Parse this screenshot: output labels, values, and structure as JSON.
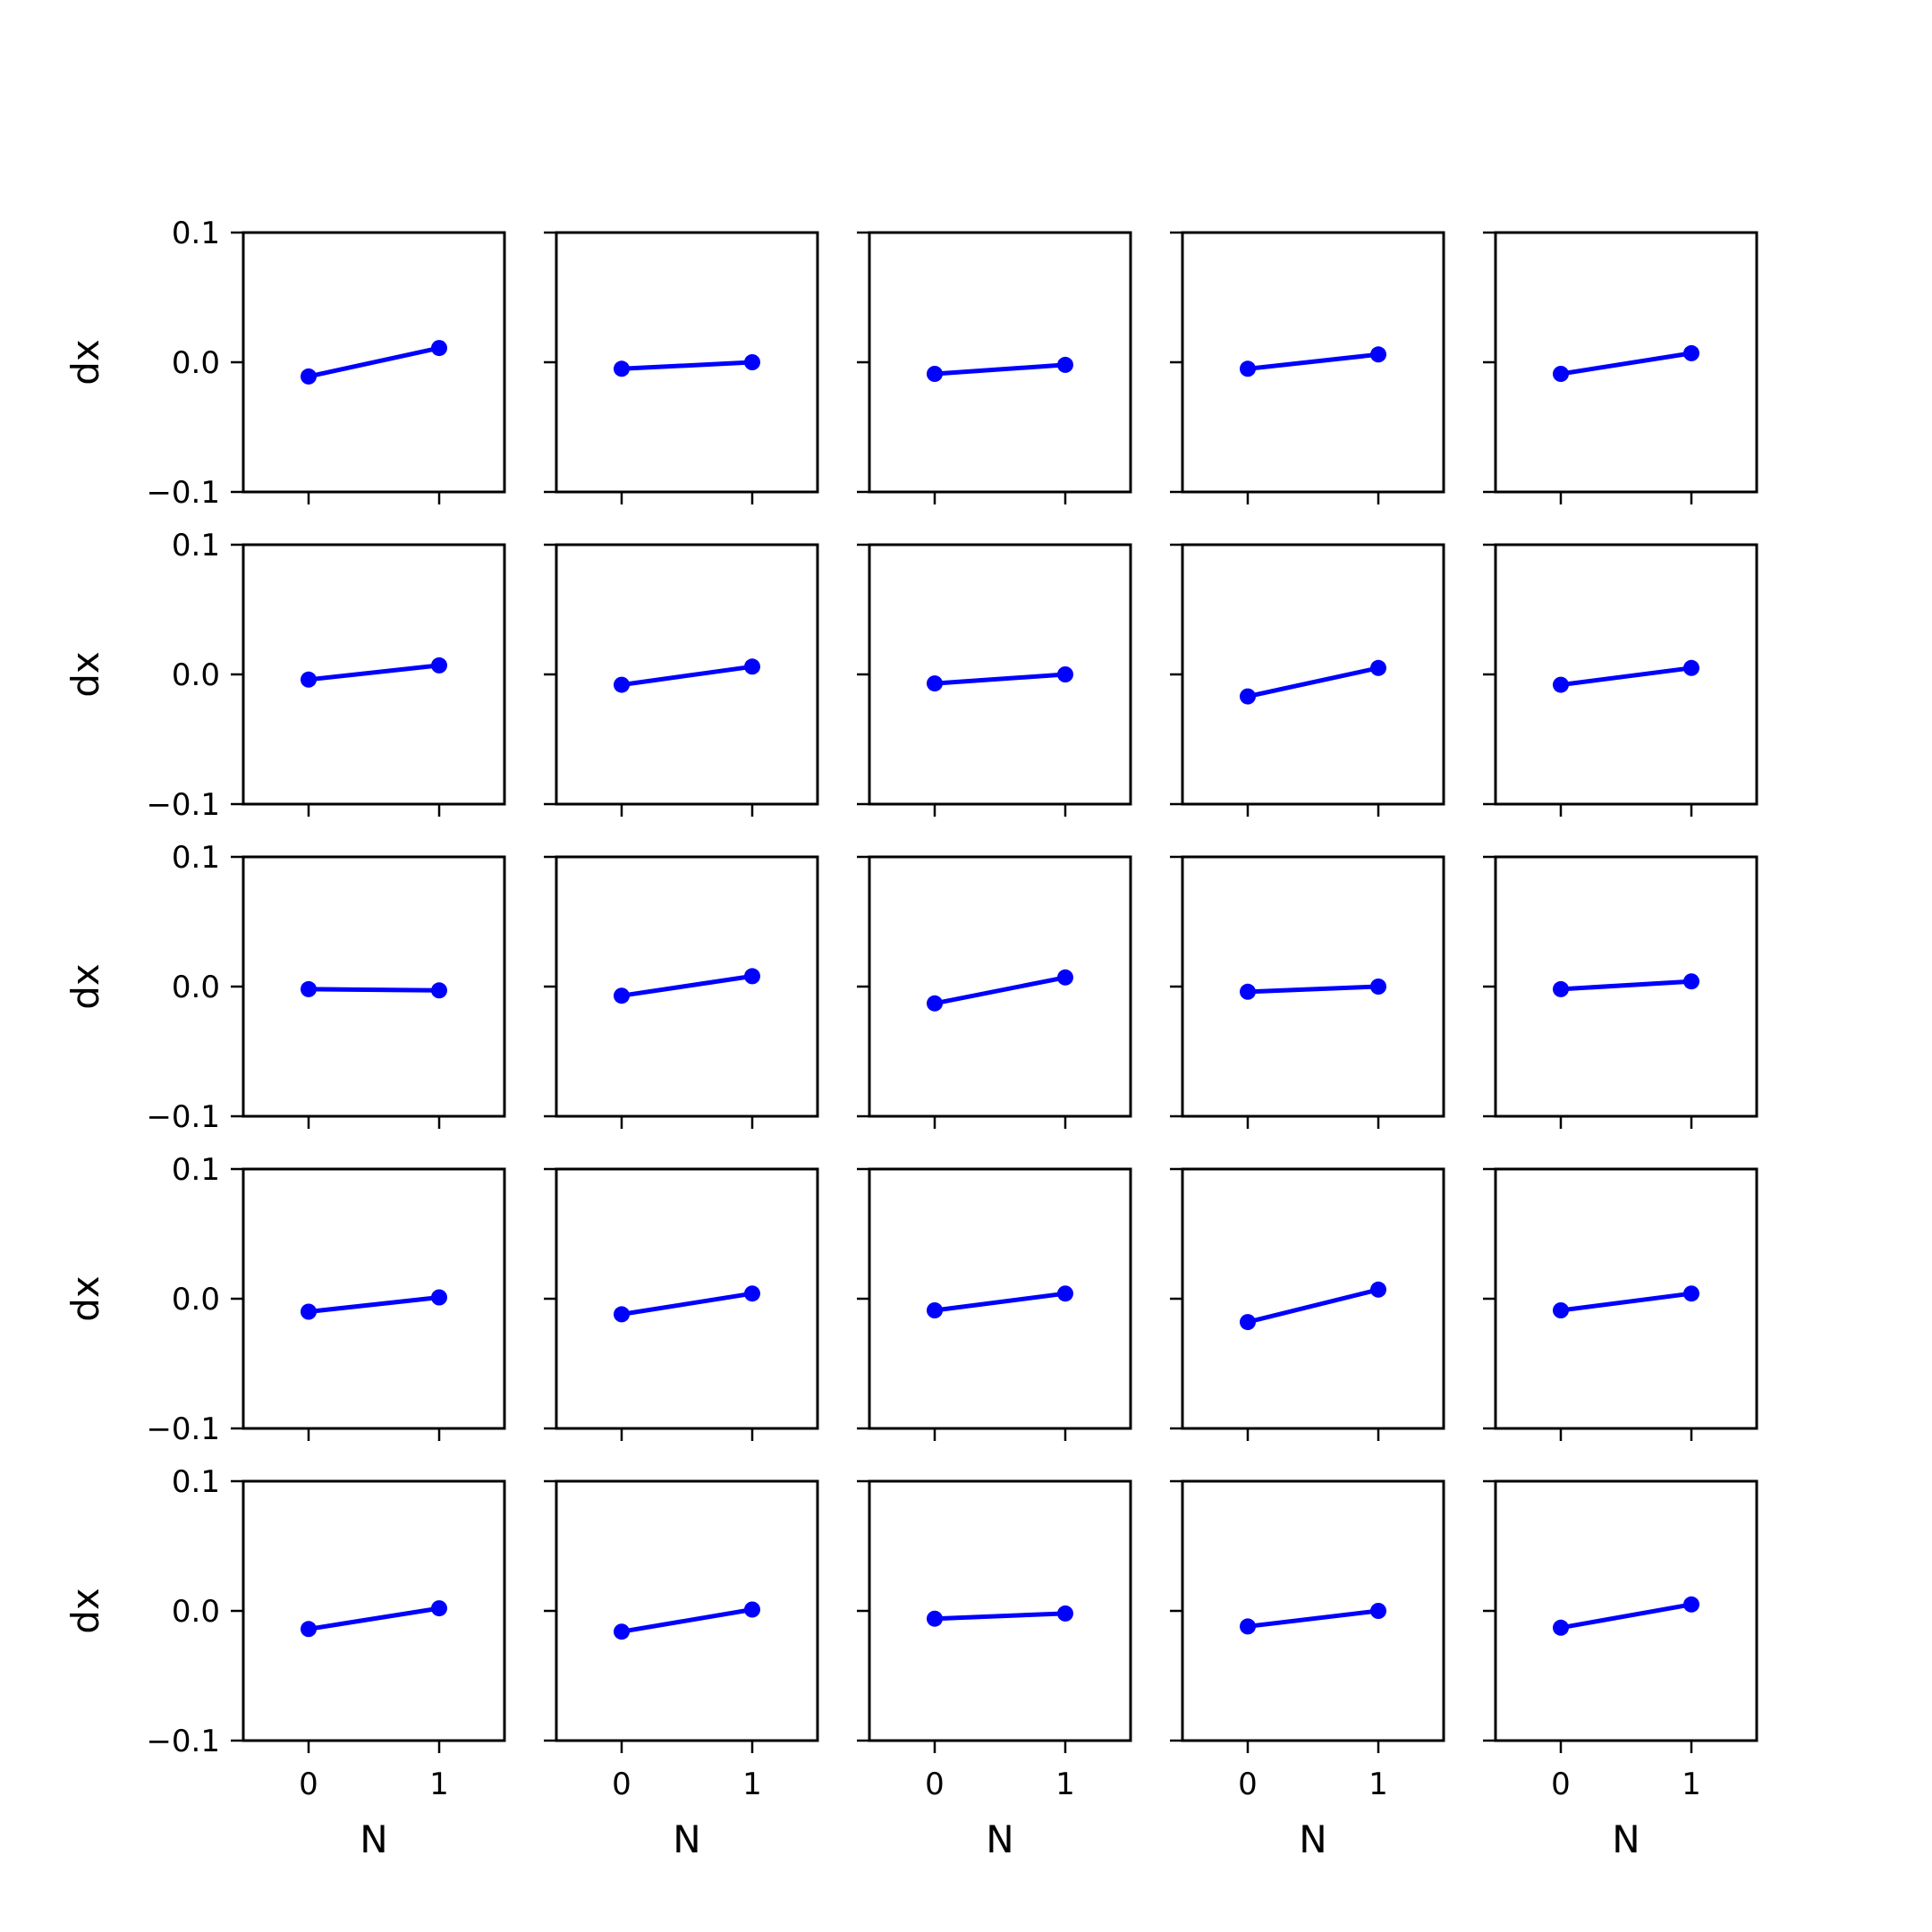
{
  "colors": {
    "series": "#0000ff",
    "axes": "#000000",
    "background": "#ffffff"
  },
  "chart_data": {
    "type": "line",
    "layout": "grid",
    "rows": 5,
    "cols": 5,
    "sharex": true,
    "sharey": true,
    "xlabel": "N",
    "ylabel": "dx",
    "xticks": [
      0,
      1
    ],
    "xtick_labels": [
      "0",
      "1"
    ],
    "yticks": [
      -0.1,
      0.0,
      0.1
    ],
    "ytick_labels": [
      "−0.1",
      "0.0",
      "0.1"
    ],
    "xlim": [
      -0.5,
      1.5
    ],
    "ylim": [
      -0.1,
      0.1
    ],
    "marker": "circle",
    "x": [
      0,
      1
    ],
    "panels": [
      [
        [
          -0.011,
          0.011
        ],
        [
          -0.005,
          0.0
        ],
        [
          -0.009,
          -0.002
        ],
        [
          -0.005,
          0.006
        ],
        [
          -0.009,
          0.007
        ]
      ],
      [
        [
          -0.004,
          0.007
        ],
        [
          -0.008,
          0.006
        ],
        [
          -0.007,
          0.0
        ],
        [
          -0.017,
          0.005
        ],
        [
          -0.008,
          0.005
        ]
      ],
      [
        [
          -0.002,
          -0.003
        ],
        [
          -0.007,
          0.008
        ],
        [
          -0.013,
          0.007
        ],
        [
          -0.004,
          0.0
        ],
        [
          -0.002,
          0.004
        ]
      ],
      [
        [
          -0.01,
          0.001
        ],
        [
          -0.012,
          0.004
        ],
        [
          -0.009,
          0.004
        ],
        [
          -0.018,
          0.007
        ],
        [
          -0.009,
          0.004
        ]
      ],
      [
        [
          -0.014,
          0.002
        ],
        [
          -0.016,
          0.001
        ],
        [
          -0.006,
          -0.002
        ],
        [
          -0.012,
          0.0
        ],
        [
          -0.013,
          0.005
        ]
      ]
    ]
  }
}
